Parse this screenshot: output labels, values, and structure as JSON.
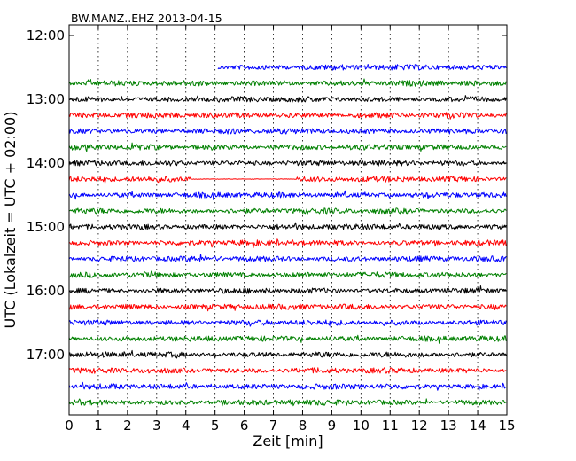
{
  "chart_data": {
    "type": "line",
    "title": "BW.MANZ..EHZ 2013-04-15",
    "xlabel": "Zeit  [min]",
    "ylabel": "UTC (Lokalzeit = UTC + 02:00)",
    "xlim": [
      0,
      15
    ],
    "x_ticks": [
      "0",
      "1",
      "2",
      "3",
      "4",
      "5",
      "6",
      "7",
      "8",
      "9",
      "10",
      "11",
      "12",
      "13",
      "14",
      "15"
    ],
    "y_ticks": [
      "12:00",
      "13:00",
      "14:00",
      "15:00",
      "16:00",
      "17:00"
    ],
    "grid": "vertical dotted",
    "colors": [
      "#0000ff",
      "#008000",
      "#000000",
      "#ff0000"
    ],
    "rows": [
      {
        "time": "12:30",
        "color": "#0000ff",
        "start_min": 5.1
      },
      {
        "time": "12:45",
        "color": "#008000"
      },
      {
        "time": "13:00",
        "color": "#000000"
      },
      {
        "time": "13:15",
        "color": "#ff0000"
      },
      {
        "time": "13:30",
        "color": "#0000ff"
      },
      {
        "time": "13:45",
        "color": "#008000"
      },
      {
        "time": "14:00",
        "color": "#000000"
      },
      {
        "time": "14:15",
        "color": "#ff0000",
        "quiet_min": [
          4.2,
          7.8
        ]
      },
      {
        "time": "14:30",
        "color": "#0000ff"
      },
      {
        "time": "14:45",
        "color": "#008000"
      },
      {
        "time": "15:00",
        "color": "#000000"
      },
      {
        "time": "15:15",
        "color": "#ff0000"
      },
      {
        "time": "15:30",
        "color": "#0000ff"
      },
      {
        "time": "15:45",
        "color": "#008000"
      },
      {
        "time": "16:00",
        "color": "#000000"
      },
      {
        "time": "16:15",
        "color": "#ff0000"
      },
      {
        "time": "16:30",
        "color": "#0000ff"
      },
      {
        "time": "16:45",
        "color": "#008000"
      },
      {
        "time": "17:00",
        "color": "#000000"
      },
      {
        "time": "17:15",
        "color": "#ff0000"
      },
      {
        "time": "17:30",
        "color": "#0000ff"
      },
      {
        "time": "17:45",
        "color": "#008000"
      }
    ]
  }
}
